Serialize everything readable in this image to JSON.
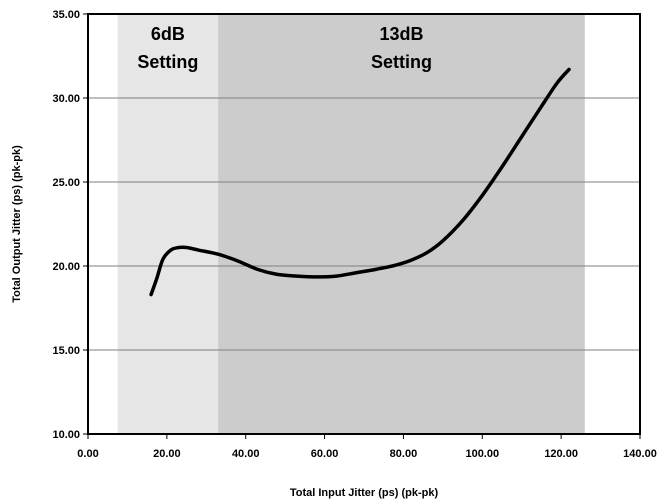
{
  "chart_data": {
    "type": "line",
    "xlabel": "Total Input Jitter (ps) (pk-pk)",
    "ylabel": "Total Output Jitter (ps) (pk-pk)",
    "xlim": [
      0,
      140
    ],
    "ylim": [
      10,
      35
    ],
    "x_ticks": [
      "0.00",
      "20.00",
      "40.00",
      "60.00",
      "80.00",
      "100.00",
      "120.00",
      "140.00"
    ],
    "y_ticks": [
      "10.00",
      "15.00",
      "20.00",
      "25.00",
      "30.00",
      "35.00"
    ],
    "grid": {
      "horizontal": true,
      "vertical": false
    },
    "regions": [
      {
        "line1": "6dB",
        "line2": "Setting",
        "x_start": 7.5,
        "x_end": 33,
        "color": "#e6e6e6"
      },
      {
        "line1": "13dB",
        "line2": "Setting",
        "x_start": 33,
        "x_end": 126,
        "color": "#cccccc"
      }
    ],
    "series": [
      {
        "color": "#000000",
        "points": [
          [
            16,
            18.3
          ],
          [
            17.5,
            19.3
          ],
          [
            19,
            20.4
          ],
          [
            21,
            20.95
          ],
          [
            23,
            21.1
          ],
          [
            25,
            21.1
          ],
          [
            28,
            20.95
          ],
          [
            33,
            20.7
          ],
          [
            38,
            20.3
          ],
          [
            43,
            19.8
          ],
          [
            48,
            19.5
          ],
          [
            53,
            19.4
          ],
          [
            58,
            19.35
          ],
          [
            63,
            19.4
          ],
          [
            68,
            19.6
          ],
          [
            73,
            19.8
          ],
          [
            78,
            20.05
          ],
          [
            82,
            20.35
          ],
          [
            86,
            20.8
          ],
          [
            90,
            21.5
          ],
          [
            95,
            22.7
          ],
          [
            100,
            24.2
          ],
          [
            105,
            25.9
          ],
          [
            110,
            27.7
          ],
          [
            115,
            29.5
          ],
          [
            119,
            30.9
          ],
          [
            122,
            31.7
          ]
        ]
      }
    ]
  }
}
